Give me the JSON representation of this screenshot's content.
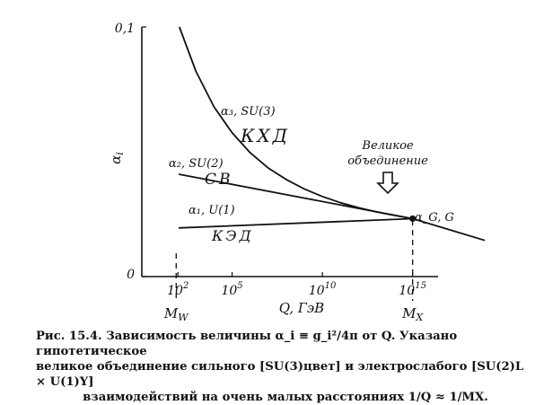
{
  "chart_data": {
    "type": "line",
    "title": "",
    "xlabel": "Q, ГэВ",
    "ylabel": "α_i",
    "x_scale": "log10",
    "xlim": [
      1,
      1e+18
    ],
    "ylim": [
      0,
      0.1
    ],
    "x_ticks": [
      {
        "value": 100,
        "base": "10",
        "exp": "2"
      },
      {
        "value": 100000,
        "base": "10",
        "exp": "5"
      },
      {
        "value": 10000000000,
        "base": "10",
        "exp": "10"
      },
      {
        "value": 1000000000000000,
        "base": "10",
        "exp": "15"
      }
    ],
    "y_ticks": [
      {
        "value": 0,
        "label": "0"
      },
      {
        "value": 0.1,
        "label": "0,1"
      }
    ],
    "markers": [
      {
        "name": "M_W",
        "label_main": "M",
        "label_sub": "W",
        "x": 80
      },
      {
        "name": "M_X",
        "label_main": "M",
        "label_sub": "X",
        "x": 1000000000000000
      }
    ],
    "unification_point": {
      "x": 1000000000000000,
      "y": 0.0232
    },
    "unification_label": [
      "Великое",
      "объединение"
    ],
    "series": [
      {
        "name": "α₃, SU(3)",
        "handwritten": "КХД",
        "x": [
          120,
          1000,
          10000,
          100000,
          1000000,
          10000000,
          100000000,
          1000000000,
          10000000000,
          100000000000,
          1000000000000,
          10000000000000,
          100000000000000,
          1000000000000000
        ],
        "y": [
          0.1,
          0.0822,
          0.068,
          0.0576,
          0.0496,
          0.0435,
          0.0389,
          0.0351,
          0.0321,
          0.0296,
          0.0276,
          0.0259,
          0.0245,
          0.0232
        ]
      },
      {
        "name": "α₂, SU(2)",
        "handwritten": "СВ",
        "x": [
          110,
          1000000000000000
        ],
        "y": [
          0.041,
          0.0232
        ]
      },
      {
        "name": "α₁, U(1)",
        "handwritten": "КЭД",
        "x": [
          110,
          1000000000000000
        ],
        "y": [
          0.0195,
          0.0232
        ]
      },
      {
        "name": "α_G, G",
        "handwritten": "",
        "x": [
          1000000000000000,
          10000000000000000000
        ],
        "y": [
          0.0232,
          0.0145
        ]
      }
    ]
  },
  "caption": {
    "line1": "Рис. 15.4. Зависимость величины α_i ≡ g_i²/4π от Q. Указано гипотетическое",
    "line2": "великое объединение сильного [SU(3)цвет] и электрослабого [SU(2)L × U(1)Y]",
    "line3": "взаимодействий на очень малых расстояниях 1/Q ≈ 1/MX."
  }
}
